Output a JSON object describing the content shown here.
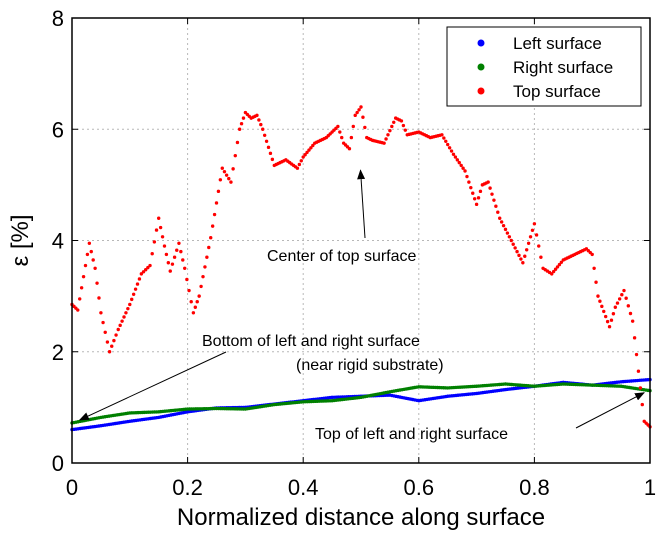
{
  "chart_data": {
    "type": "scatter",
    "title": "",
    "xlabel": "Normalized distance along surface",
    "ylabel": "ε [%]",
    "xlim": [
      0,
      1
    ],
    "ylim": [
      0,
      8
    ],
    "xticks": [
      0,
      0.2,
      0.4,
      0.6,
      0.8,
      1
    ],
    "yticks": [
      0,
      2,
      4,
      6,
      8
    ],
    "xtick_labels": [
      "0",
      "0.2",
      "0.4",
      "0.6",
      "0.8",
      "1"
    ],
    "ytick_labels": [
      "0",
      "2",
      "4",
      "6",
      "8"
    ],
    "grid": true,
    "legend_position": "top-right",
    "series": [
      {
        "name": "Left surface",
        "color": "#0000ff",
        "x": [
          0,
          0.05,
          0.1,
          0.15,
          0.2,
          0.25,
          0.3,
          0.35,
          0.4,
          0.45,
          0.5,
          0.55,
          0.6,
          0.65,
          0.7,
          0.75,
          0.8,
          0.85,
          0.9,
          0.95,
          1.0
        ],
        "y": [
          0.6,
          0.67,
          0.75,
          0.82,
          0.92,
          0.99,
          1.0,
          1.06,
          1.12,
          1.18,
          1.2,
          1.22,
          1.12,
          1.2,
          1.25,
          1.32,
          1.38,
          1.45,
          1.4,
          1.46,
          1.5
        ]
      },
      {
        "name": "Right surface",
        "color": "#008000",
        "x": [
          0,
          0.05,
          0.1,
          0.15,
          0.2,
          0.25,
          0.3,
          0.35,
          0.4,
          0.45,
          0.5,
          0.55,
          0.6,
          0.65,
          0.7,
          0.75,
          0.8,
          0.85,
          0.9,
          0.95,
          1.0
        ],
        "y": [
          0.72,
          0.82,
          0.9,
          0.92,
          0.97,
          0.98,
          0.97,
          1.05,
          1.1,
          1.12,
          1.18,
          1.28,
          1.37,
          1.35,
          1.38,
          1.42,
          1.38,
          1.42,
          1.4,
          1.38,
          1.3
        ]
      },
      {
        "name": "Top surface",
        "color": "#ff0000",
        "x": [
          0,
          0.01,
          0.02,
          0.03,
          0.04,
          0.05,
          0.065,
          0.08,
          0.1,
          0.12,
          0.135,
          0.15,
          0.16,
          0.17,
          0.185,
          0.195,
          0.21,
          0.22,
          0.24,
          0.26,
          0.275,
          0.29,
          0.3,
          0.31,
          0.32,
          0.33,
          0.35,
          0.37,
          0.39,
          0.4,
          0.42,
          0.44,
          0.46,
          0.47,
          0.48,
          0.49,
          0.5,
          0.51,
          0.52,
          0.54,
          0.56,
          0.57,
          0.58,
          0.6,
          0.62,
          0.64,
          0.66,
          0.68,
          0.7,
          0.71,
          0.72,
          0.74,
          0.76,
          0.78,
          0.8,
          0.815,
          0.83,
          0.85,
          0.87,
          0.89,
          0.9,
          0.91,
          0.93,
          0.94,
          0.955,
          0.97,
          0.98,
          0.99,
          1.0
        ],
        "y": [
          2.85,
          2.75,
          3.35,
          3.95,
          3.5,
          2.7,
          2.0,
          2.4,
          2.85,
          3.4,
          3.55,
          4.4,
          3.9,
          3.45,
          3.95,
          3.5,
          2.7,
          3.0,
          4.05,
          5.3,
          5.05,
          6.0,
          6.3,
          6.2,
          6.25,
          6.0,
          5.35,
          5.45,
          5.3,
          5.5,
          5.75,
          5.85,
          6.05,
          5.75,
          5.65,
          6.25,
          6.4,
          5.85,
          5.8,
          5.75,
          6.2,
          6.15,
          5.9,
          5.95,
          5.85,
          5.9,
          5.55,
          5.25,
          4.65,
          5.0,
          5.05,
          4.4,
          4.0,
          3.6,
          4.3,
          3.5,
          3.4,
          3.65,
          3.75,
          3.85,
          3.75,
          3.0,
          2.45,
          2.8,
          3.1,
          2.55,
          1.65,
          0.75,
          0.65
        ]
      }
    ],
    "annotations": [
      {
        "text": "Center of top surface",
        "arrow_to": [
          0.5,
          5.3
        ]
      },
      {
        "text": "Bottom of left and right surface",
        "text2": "(near rigid substrate)",
        "arrow_to": [
          0.01,
          0.72
        ]
      },
      {
        "text": "Top of left and right surface",
        "arrow_to": [
          0.995,
          1.3
        ]
      }
    ]
  }
}
